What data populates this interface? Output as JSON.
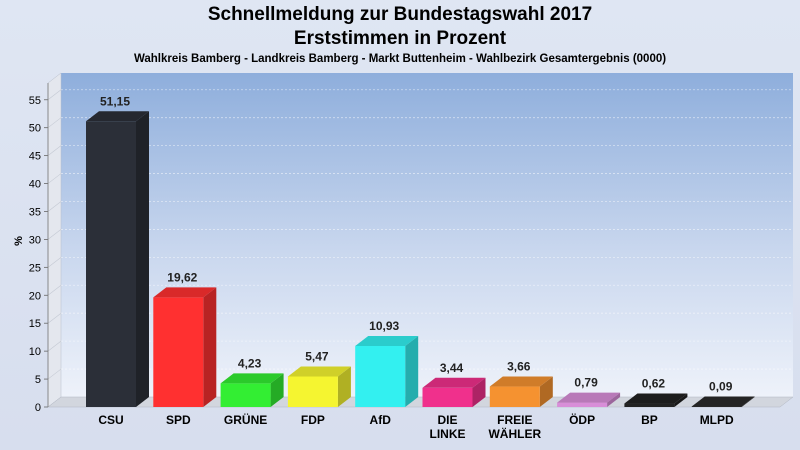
{
  "header": {
    "title_line1": "Schnellmeldung zur Bundestagswahl 2017",
    "title_line2": "Erststimmen in Prozent",
    "subtitle": "Wahlkreis Bamberg - Landkreis Bamberg - Markt Buttenheim - Wahlbezirk Gesamtergebnis (0000)"
  },
  "chart_data": {
    "type": "bar",
    "title": "Schnellmeldung zur Bundestagswahl 2017 Erststimmen in Prozent",
    "subtitle": "Wahlkreis Bamberg - Landkreis Bamberg - Markt Buttenheim - Wahlbezirk Gesamtergebnis (0000)",
    "ylabel": "%",
    "ylim": [
      0,
      58
    ],
    "yticks": [
      0,
      5,
      10,
      15,
      20,
      25,
      30,
      35,
      40,
      45,
      50,
      55
    ],
    "grid": true,
    "categories": [
      [
        "CSU"
      ],
      [
        "SPD"
      ],
      [
        "GRÜNE"
      ],
      [
        "FDP"
      ],
      [
        "AfD"
      ],
      [
        "DIE",
        "LINKE"
      ],
      [
        "FREIE",
        "WÄHLER"
      ],
      [
        "ÖDP"
      ],
      [
        "BP"
      ],
      [
        "MLPD"
      ]
    ],
    "values": [
      51.15,
      19.62,
      4.23,
      5.47,
      10.93,
      3.44,
      3.66,
      0.79,
      0.62,
      0.09
    ],
    "value_labels": [
      "51,15",
      "19,62",
      "4,23",
      "5,47",
      "10,93",
      "3,44",
      "3,66",
      "0,79",
      "0,62",
      "0,09"
    ],
    "colors": [
      "#2b2f38",
      "#ff3030",
      "#33ee33",
      "#f5f530",
      "#33f0f0",
      "#f0308c",
      "#f59230",
      "#d88ed8",
      "#222222",
      "#2a2a2a"
    ]
  }
}
